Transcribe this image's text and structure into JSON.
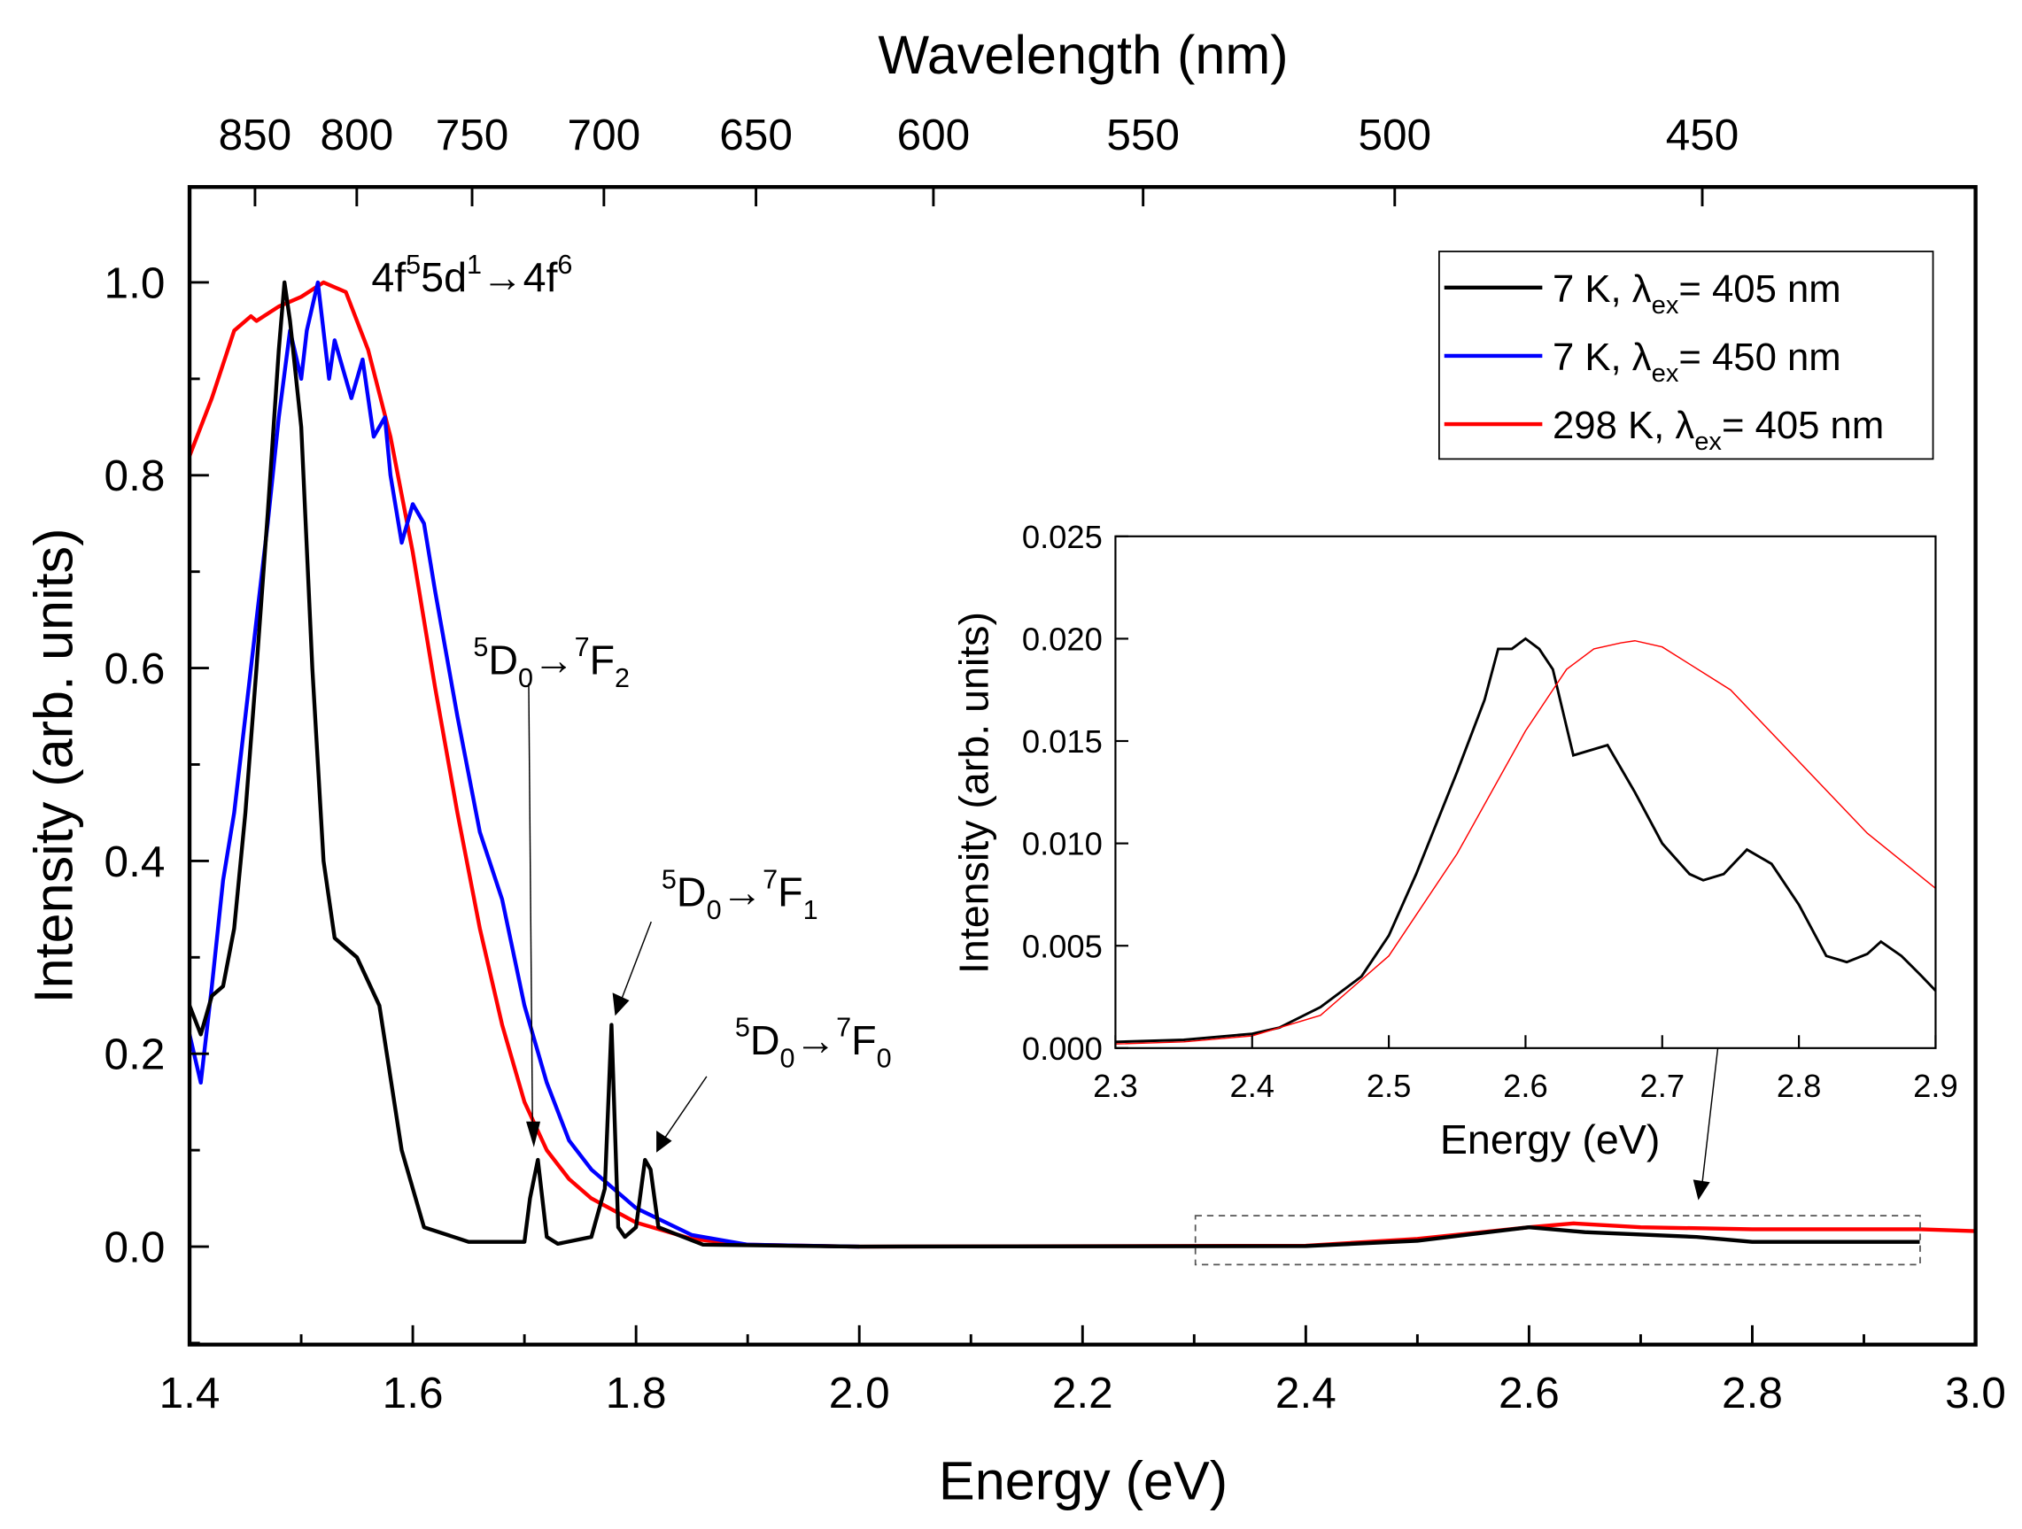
{
  "chart_data": {
    "type": "line",
    "main": {
      "xlabel": "Energy (eV)",
      "ylabel": "Intensity (arb. units)",
      "top_xlabel": "Wavelength (nm)",
      "xlim": [
        1.4,
        3.0
      ],
      "ylim": [
        -0.1,
        1.1
      ],
      "xticks": [
        "1.4",
        "1.6",
        "1.8",
        "2.0",
        "2.2",
        "2.4",
        "2.6",
        "2.8",
        "3.0"
      ],
      "yticks": [
        "0.0",
        "0.2",
        "0.4",
        "0.6",
        "0.8",
        "1.0"
      ],
      "top_ticks": [
        "850",
        "800",
        "750",
        "700",
        "650",
        "600",
        "550",
        "500",
        "450"
      ],
      "series": [
        {
          "name": "298 K, λex= 405 nm",
          "label_main": "298 K, λ",
          "label_sub": "ex",
          "label_tail": "= 405 nm",
          "color": "#ff0000",
          "x": [
            1.4,
            1.42,
            1.44,
            1.455,
            1.46,
            1.48,
            1.5,
            1.52,
            1.54,
            1.56,
            1.58,
            1.6,
            1.62,
            1.64,
            1.66,
            1.68,
            1.7,
            1.72,
            1.74,
            1.76,
            1.8,
            1.85,
            1.9,
            2.0,
            2.4,
            2.5,
            2.6,
            2.64,
            2.7,
            2.8,
            2.95,
            3.0
          ],
          "y": [
            0.82,
            0.88,
            0.95,
            0.965,
            0.96,
            0.975,
            0.985,
            1.0,
            0.99,
            0.93,
            0.84,
            0.72,
            0.58,
            0.45,
            0.33,
            0.23,
            0.15,
            0.1,
            0.07,
            0.05,
            0.025,
            0.008,
            0.002,
            0.0,
            0.001,
            0.008,
            0.02,
            0.024,
            0.02,
            0.018,
            0.018,
            0.016
          ]
        },
        {
          "name": "7 K, λex= 450 nm",
          "label_main": "7 K, λ",
          "label_sub": "ex",
          "label_tail": "= 450 nm",
          "color": "#0000ff",
          "x": [
            1.4,
            1.41,
            1.42,
            1.43,
            1.44,
            1.45,
            1.46,
            1.47,
            1.48,
            1.49,
            1.5,
            1.505,
            1.515,
            1.525,
            1.53,
            1.545,
            1.555,
            1.565,
            1.575,
            1.58,
            1.59,
            1.6,
            1.61,
            1.62,
            1.64,
            1.66,
            1.68,
            1.7,
            1.72,
            1.74,
            1.76,
            1.8,
            1.85,
            1.9,
            2.0
          ],
          "y": [
            0.22,
            0.17,
            0.27,
            0.38,
            0.45,
            0.55,
            0.65,
            0.75,
            0.86,
            0.95,
            0.9,
            0.95,
            1.0,
            0.9,
            0.94,
            0.88,
            0.92,
            0.84,
            0.86,
            0.8,
            0.73,
            0.77,
            0.75,
            0.68,
            0.55,
            0.43,
            0.36,
            0.25,
            0.17,
            0.11,
            0.08,
            0.04,
            0.012,
            0.002,
            0.0
          ]
        },
        {
          "name": "7 K, λex= 405 nm",
          "label_main": "7 K, λ",
          "label_sub": "ex",
          "label_tail": "= 405 nm",
          "color": "#000000",
          "x": [
            1.4,
            1.41,
            1.42,
            1.43,
            1.44,
            1.45,
            1.46,
            1.47,
            1.48,
            1.485,
            1.49,
            1.5,
            1.51,
            1.52,
            1.53,
            1.55,
            1.57,
            1.59,
            1.61,
            1.65,
            1.7,
            1.705,
            1.712,
            1.72,
            1.73,
            1.76,
            1.772,
            1.778,
            1.784,
            1.79,
            1.8,
            1.808,
            1.813,
            1.82,
            1.86,
            2.0,
            2.4,
            2.5,
            2.6,
            2.65,
            2.75,
            2.8,
            2.95
          ],
          "y": [
            0.25,
            0.22,
            0.26,
            0.27,
            0.33,
            0.45,
            0.6,
            0.76,
            0.93,
            1.0,
            0.96,
            0.85,
            0.6,
            0.4,
            0.32,
            0.3,
            0.25,
            0.1,
            0.02,
            0.005,
            0.005,
            0.05,
            0.09,
            0.01,
            0.003,
            0.01,
            0.06,
            0.23,
            0.02,
            0.01,
            0.02,
            0.09,
            0.08,
            0.02,
            0.002,
            0.0,
            0.0005,
            0.006,
            0.02,
            0.015,
            0.01,
            0.005,
            0.005
          ]
        }
      ],
      "annotations": [
        {
          "pre": "4f",
          "sup1": "5",
          "mid": "5d",
          "sup2": "1",
          "arrow": "→4f",
          "sup3": "6"
        },
        {
          "sup": "5",
          "a": "D",
          "sub1": "0",
          "arrow": "→",
          "sup2": "7",
          "b": "F",
          "sub2": "2"
        },
        {
          "sup": "5",
          "a": "D",
          "sub1": "0",
          "arrow": "→",
          "sup2": "7",
          "b": "F",
          "sub2": "1"
        },
        {
          "sup": "5",
          "a": "D",
          "sub1": "0",
          "arrow": "→",
          "sup2": "7",
          "b": "F",
          "sub2": "0"
        }
      ]
    },
    "inset": {
      "xlabel": "Energy (eV)",
      "ylabel": "Intensity (arb. units)",
      "xlim": [
        2.3,
        2.9
      ],
      "ylim": [
        0.0,
        0.025
      ],
      "xticks": [
        "2.3",
        "2.4",
        "2.5",
        "2.6",
        "2.7",
        "2.8",
        "2.9"
      ],
      "yticks": [
        "0.000",
        "0.005",
        "0.010",
        "0.015",
        "0.020",
        "0.025"
      ],
      "series": [
        {
          "name": "7 K, λex= 405 nm",
          "color": "#000000",
          "x": [
            2.3,
            2.35,
            2.4,
            2.42,
            2.45,
            2.48,
            2.5,
            2.52,
            2.55,
            2.57,
            2.58,
            2.59,
            2.6,
            2.61,
            2.62,
            2.635,
            2.66,
            2.68,
            2.7,
            2.72,
            2.73,
            2.745,
            2.762,
            2.78,
            2.8,
            2.82,
            2.835,
            2.85,
            2.86,
            2.875,
            2.89,
            2.9
          ],
          "y": [
            0.0003,
            0.0004,
            0.0007,
            0.001,
            0.002,
            0.0035,
            0.0055,
            0.0085,
            0.0135,
            0.017,
            0.0195,
            0.0195,
            0.02,
            0.0195,
            0.0185,
            0.0143,
            0.0148,
            0.0125,
            0.01,
            0.0085,
            0.0082,
            0.0085,
            0.0097,
            0.009,
            0.007,
            0.0045,
            0.0042,
            0.0046,
            0.0052,
            0.0045,
            0.0035,
            0.0028
          ]
        },
        {
          "name": "298 K, λex= 405 nm",
          "color": "#ff0000",
          "x": [
            2.3,
            2.35,
            2.4,
            2.45,
            2.5,
            2.55,
            2.6,
            2.63,
            2.65,
            2.67,
            2.68,
            2.7,
            2.75,
            2.8,
            2.85,
            2.9
          ],
          "y": [
            0.0002,
            0.0003,
            0.0006,
            0.0016,
            0.0045,
            0.0095,
            0.0155,
            0.0185,
            0.0195,
            0.0198,
            0.0199,
            0.0196,
            0.0175,
            0.014,
            0.0105,
            0.0078
          ]
        }
      ]
    }
  }
}
